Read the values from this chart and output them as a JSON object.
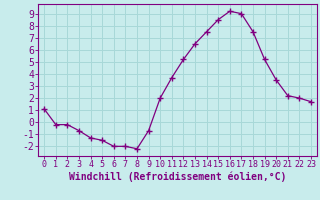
{
  "x": [
    0,
    1,
    2,
    3,
    4,
    5,
    6,
    7,
    8,
    9,
    10,
    11,
    12,
    13,
    14,
    15,
    16,
    17,
    18,
    19,
    20,
    21,
    22,
    23
  ],
  "y": [
    1.1,
    -0.2,
    -0.2,
    -0.7,
    -1.3,
    -1.5,
    -2.0,
    -2.0,
    -2.2,
    -0.7,
    2.0,
    3.7,
    5.2,
    6.5,
    7.5,
    8.5,
    9.2,
    9.0,
    7.5,
    5.2,
    3.5,
    2.2,
    2.0,
    1.7
  ],
  "line_color": "#800080",
  "marker_color": "#800080",
  "bg_color": "#c8ecec",
  "grid_color": "#a8d8d8",
  "axis_label_color": "#800080",
  "tick_color": "#800080",
  "xlabel": "Windchill (Refroidissement éolien,°C)",
  "xlabel_fontsize": 7,
  "ytick_fontsize": 7,
  "xtick_fontsize": 6,
  "ylim": [
    -2.8,
    9.8
  ],
  "xlim": [
    -0.5,
    23.5
  ],
  "yticks": [
    -2,
    -1,
    0,
    1,
    2,
    3,
    4,
    5,
    6,
    7,
    8,
    9
  ],
  "xticks": [
    0,
    1,
    2,
    3,
    4,
    5,
    6,
    7,
    8,
    9,
    10,
    11,
    12,
    13,
    14,
    15,
    16,
    17,
    18,
    19,
    20,
    21,
    22,
    23
  ]
}
